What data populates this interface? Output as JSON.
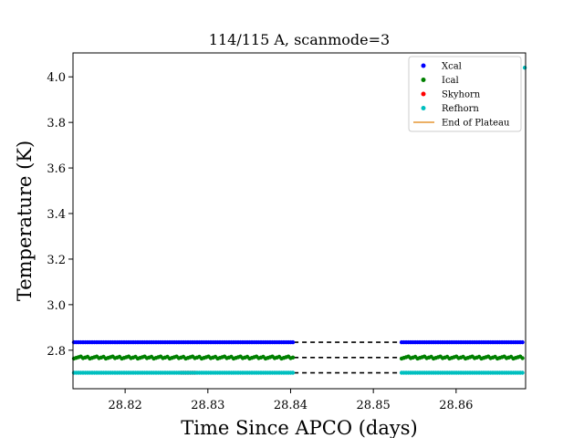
{
  "chart_data": {
    "type": "scatter",
    "title": "114/115 A, scanmode=3",
    "xlabel": "Time Since APCO (days)",
    "ylabel": "Temperature (K)",
    "xlim": [
      28.8137,
      28.8684
    ],
    "ylim": [
      2.631,
      4.105
    ],
    "xticks": [
      28.82,
      28.83,
      28.84,
      28.85,
      28.86
    ],
    "xtick_labels": [
      "28.82",
      "28.83",
      "28.84",
      "28.85",
      "28.86"
    ],
    "yticks": [
      2.8,
      3.0,
      3.2,
      3.4,
      3.6,
      3.8,
      4.0
    ],
    "ytick_labels": [
      "2.8",
      "3.0",
      "3.2",
      "3.4",
      "3.6",
      "3.8",
      "4.0"
    ],
    "grid": false,
    "legend_position": "top-right",
    "gap": [
      28.8404,
      28.8533
    ],
    "series": [
      {
        "name": "Xcal",
        "kind": "points",
        "color": "#0000ff",
        "level": 2.835
      },
      {
        "name": "Ical",
        "kind": "points",
        "color": "#008000",
        "level": 2.768
      },
      {
        "name": "Skyhorn",
        "kind": "points",
        "color": "#ff0000",
        "level": 2.701
      },
      {
        "name": "Refhorn",
        "kind": "points",
        "color": "#00bfbf",
        "level": 2.701,
        "outlier": {
          "x": 28.8683,
          "y": 4.04
        }
      },
      {
        "name": "End of Plateau",
        "kind": "line",
        "color": "#e69532"
      }
    ],
    "gap_lines": [
      {
        "series": "Xcal",
        "y": 2.835,
        "color": "#000000",
        "style": "dashed"
      },
      {
        "series": "Ical",
        "y": 2.768,
        "color": "#000000",
        "style": "dashed"
      },
      {
        "series": "Refhorn",
        "y": 2.701,
        "color": "#000000",
        "style": "dashed"
      }
    ]
  }
}
